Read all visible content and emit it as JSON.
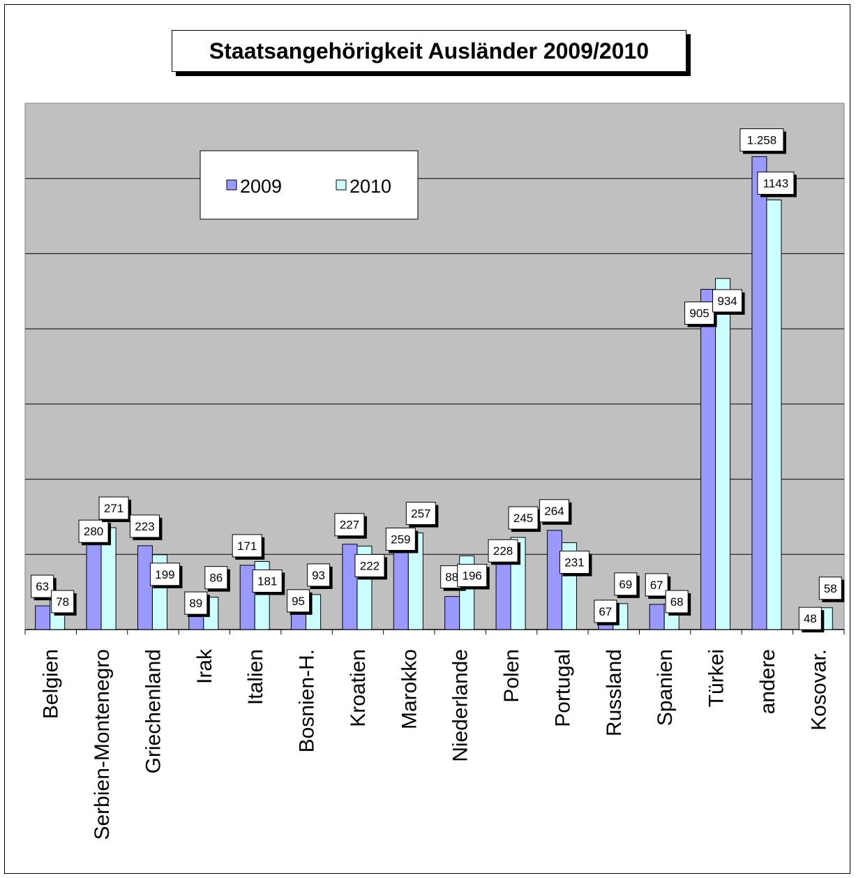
{
  "chart_data": {
    "type": "bar",
    "title": "Staatsangehörigkeit Ausländer 2009/2010",
    "xlabel": "",
    "ylabel": "",
    "ylim": [
      0,
      1400
    ],
    "grid": true,
    "legend_position": "top-left",
    "categories": [
      "Belgien",
      "Serbien-Montenegro",
      "Griechenland",
      "Irak",
      "Italien",
      "Bosnien-H.",
      "Kroatien",
      "Marokko",
      "Niederlande",
      "Polen",
      "Portugal",
      "Russland",
      "Spanien",
      "Türkei",
      "andere",
      "Kosovar."
    ],
    "series": [
      {
        "name": "2009",
        "color": "#9999ff",
        "values": [
          63,
          280,
          223,
          89,
          171,
          95,
          227,
          259,
          88,
          228,
          264,
          67,
          67,
          905,
          1258,
          48
        ],
        "labels": [
          "63",
          "280",
          "223",
          "89",
          "171",
          "95",
          "227",
          "259",
          "88",
          "228",
          "264",
          "67",
          "67",
          "905",
          "1.258",
          "48"
        ]
      },
      {
        "name": "2010",
        "color": "#ccffff",
        "values": [
          78,
          271,
          199,
          86,
          181,
          93,
          222,
          257,
          196,
          245,
          231,
          69,
          68,
          934,
          1143,
          58
        ],
        "labels": [
          "78",
          "271",
          "199",
          "86",
          "181",
          "93",
          "222",
          "257",
          "196",
          "245",
          "231",
          "69",
          "68",
          "934",
          "1143",
          "58"
        ]
      }
    ]
  },
  "colors": {
    "plot_background": "#c0c0c0",
    "gridline": "#000000"
  }
}
